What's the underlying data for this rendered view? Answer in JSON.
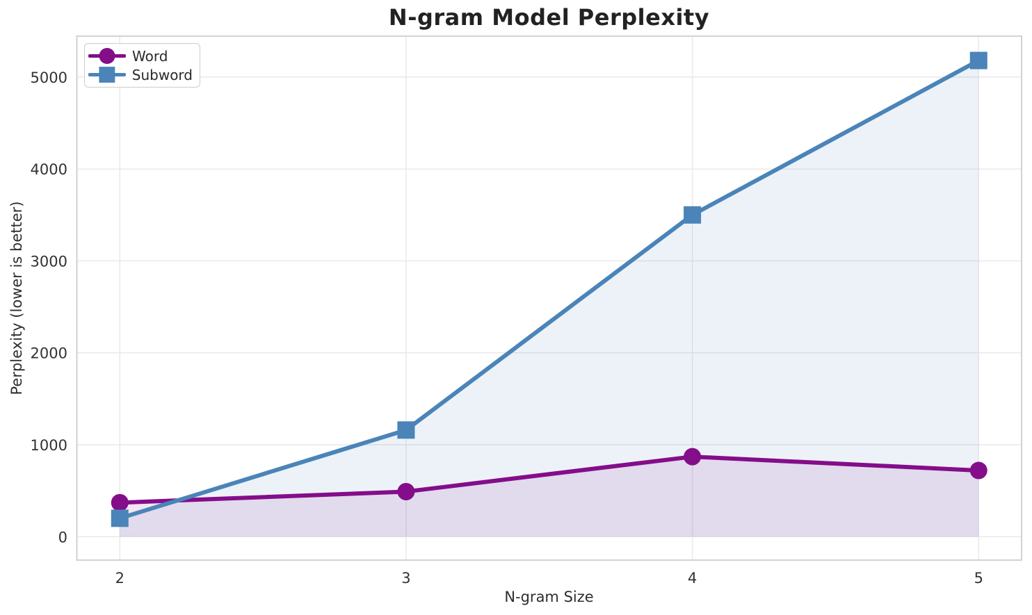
{
  "chart_data": {
    "type": "line",
    "title": "N-gram Model Perplexity",
    "xlabel": "N-gram Size",
    "ylabel": "Perplexity (lower is better)",
    "x": [
      2,
      3,
      4,
      5
    ],
    "series": [
      {
        "name": "Word",
        "values": [
          370,
          490,
          870,
          720
        ],
        "color": "#840d8a",
        "marker": "circle",
        "area_fill": true,
        "fill_opacity": 0.1
      },
      {
        "name": "Subword",
        "values": [
          200,
          1160,
          3500,
          5180
        ],
        "color": "#4a84b8",
        "marker": "square",
        "area_fill": true,
        "fill_opacity": 0.1
      }
    ],
    "xticks": [
      "2",
      "3",
      "4",
      "5"
    ],
    "xtick_values": [
      2,
      3,
      4,
      5
    ],
    "yticks": [
      "0",
      "1000",
      "2000",
      "3000",
      "4000",
      "5000"
    ],
    "ytick_values": [
      0,
      1000,
      2000,
      3000,
      4000,
      5000
    ],
    "xlim": [
      1.85,
      5.15
    ],
    "ylim": [
      -255,
      5445
    ],
    "grid": true,
    "legend_position": "upper left",
    "line_width": 6,
    "styles": {
      "grid_color": "#e8e8e8",
      "spine_color": "#cecece",
      "tick_label_color": "#323232",
      "title_color": "#222222",
      "background": "#ffffff"
    }
  }
}
